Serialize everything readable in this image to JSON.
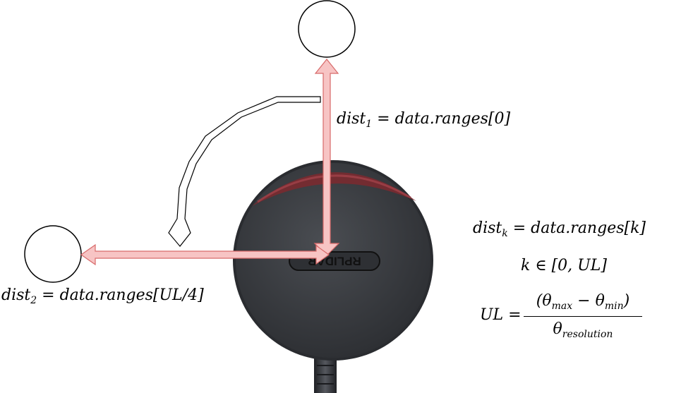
{
  "device": {
    "logo_text": "RPLIDAR",
    "body_color": "#3a3d42",
    "window_color": "#7a2a30"
  },
  "arrows": {
    "range_arrow_fill": "#f7c4c4",
    "range_arrow_stroke": "#d86a6a",
    "rotation_arrow_fill": "#ffffff",
    "rotation_arrow_stroke": "#000000"
  },
  "labels": {
    "dist1": {
      "lhs": "dist",
      "sub": "1",
      "rhs": " = data.ranges[0]"
    },
    "dist2": {
      "lhs": "dist",
      "sub": "2",
      "rhs": " = data.ranges[UL/4]"
    },
    "distk": {
      "lhs": "dist",
      "sub": "k",
      "rhs": " = data.ranges[k]"
    },
    "krange": {
      "text": "k ∈ [0, UL]"
    },
    "ul": {
      "lhs": "UL = ",
      "num_open": "(θ",
      "num_sub1": "max",
      "num_mid": " − θ",
      "num_sub2": "min",
      "num_close": ")",
      "den_main": "θ",
      "den_sub": "resolution"
    }
  }
}
